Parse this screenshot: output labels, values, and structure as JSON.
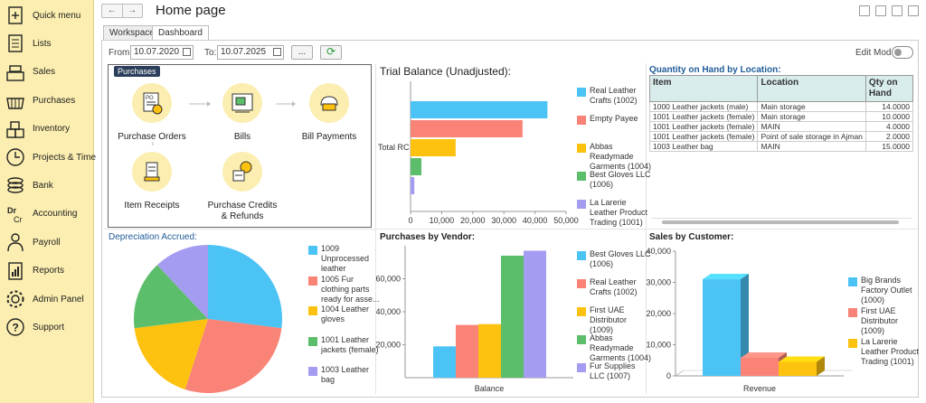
{
  "sidebar": {
    "items": [
      {
        "label": "Quick menu",
        "icon": "plus-doc-icon"
      },
      {
        "label": "Lists",
        "icon": "list-doc-icon"
      },
      {
        "label": "Sales",
        "icon": "cash-register-icon"
      },
      {
        "label": "Purchases",
        "icon": "basket-icon"
      },
      {
        "label": "Inventory",
        "icon": "boxes-icon"
      },
      {
        "label": "Projects & Time",
        "icon": "clock-icon"
      },
      {
        "label": "Bank",
        "icon": "coins-icon"
      },
      {
        "label": "Accounting",
        "icon": "dr-cr-icon"
      },
      {
        "label": "Payroll",
        "icon": "person-icon"
      },
      {
        "label": "Reports",
        "icon": "report-icon"
      },
      {
        "label": "Admin Panel",
        "icon": "gear-icon"
      },
      {
        "label": "Support",
        "icon": "question-icon"
      }
    ]
  },
  "header": {
    "title": "Home page",
    "back": "←",
    "forward": "→"
  },
  "tabs": [
    {
      "label": "Workspace"
    },
    {
      "label": "Dashboard"
    }
  ],
  "filters": {
    "from_label": "From:",
    "from_value": "10.07.2020",
    "to_label": "To:",
    "to_value": "10.07.2025",
    "more_label": "...",
    "refresh_glyph": "⟳"
  },
  "edit_mode_label": "Edit Mode",
  "purchases_flow": {
    "tag": "Purchases",
    "steps": [
      {
        "label": "Purchase Orders"
      },
      {
        "label": "Bills"
      },
      {
        "label": "Bill Payments"
      },
      {
        "label": "Item Receipts"
      },
      {
        "label": "Purchase Credits\n& Refunds"
      }
    ]
  },
  "colors": {
    "blue": "#4cc3f5",
    "red": "#f98377",
    "yellow": "#fdc20f",
    "green": "#5cbe6a",
    "purple": "#a49cf0"
  },
  "trial_balance": {
    "title": "Trial Balance (Unadjusted):",
    "chart_data": {
      "type": "bar",
      "orientation": "horizontal",
      "categories": [
        "Total RC"
      ],
      "series": [
        {
          "name": "Real Leather\nCrafts (1002)",
          "values": [
            44000
          ],
          "color": "#4cc3f5"
        },
        {
          "name": "Empty Payee",
          "values": [
            36000
          ],
          "color": "#f98377"
        },
        {
          "name": "Abbas\nReadymade\nGarments (1004)",
          "values": [
            14500
          ],
          "color": "#fdc20f"
        },
        {
          "name": "Best Gloves LLC\n(1006)",
          "values": [
            3500
          ],
          "color": "#5cbe6a"
        },
        {
          "name": "La Larerie\nLeather Product\nTrading (1001)",
          "values": [
            1200
          ],
          "color": "#a49cf0"
        }
      ],
      "xlim": [
        0,
        50000
      ],
      "xticks": [
        "0",
        "10,000",
        "20,000",
        "30,000",
        "40,000",
        "50,000"
      ]
    }
  },
  "qty_on_hand": {
    "title": "Quantity on Hand by Location:",
    "headers": [
      "Item",
      "Location",
      "Qty on\nHand"
    ],
    "rows": [
      [
        "1000 Leather jackets (male)",
        "Main storage",
        "14.0000"
      ],
      [
        "1001 Leather jackets (female)",
        "Main storage",
        "10.0000"
      ],
      [
        "1001 Leather jackets (female)",
        "MAIN",
        "4.0000"
      ],
      [
        "1001 Leather jackets (female)",
        "Point of sale storage in Ajman",
        "2.0000"
      ],
      [
        "1003 Leather bag",
        "MAIN",
        "15.0000"
      ]
    ]
  },
  "depreciation": {
    "title": "Depreciation Accrued:",
    "chart_data": {
      "type": "pie",
      "slices": [
        {
          "name": "1009\nUnprocessed\nleather",
          "value": 27,
          "color": "#4cc3f5"
        },
        {
          "name": "1005 Fur\nclothing parts\nready for asse...",
          "value": 28,
          "color": "#f98377"
        },
        {
          "name": "1004 Leather\ngloves",
          "value": 18,
          "color": "#fdc20f"
        },
        {
          "name": "1001 Leather\njackets (female)",
          "value": 15,
          "color": "#5cbe6a"
        },
        {
          "name": "1003 Leather\nbag",
          "value": 12,
          "color": "#a49cf0"
        }
      ]
    }
  },
  "purchases_by_vendor": {
    "title": "Purchases by Vendor:",
    "chart_data": {
      "type": "bar",
      "categories": [
        "Balance"
      ],
      "series": [
        {
          "name": "Best Gloves LLC\n(1006)",
          "values": [
            19000
          ],
          "color": "#4cc3f5"
        },
        {
          "name": "Real Leather\nCrafts (1002)",
          "values": [
            32000
          ],
          "color": "#f98377"
        },
        {
          "name": "First UAE\nDistributor\n(1009)",
          "values": [
            32500
          ],
          "color": "#fdc20f"
        },
        {
          "name": "Abbas\nReadymade\nGarments (1004)",
          "values": [
            74000
          ],
          "color": "#5cbe6a"
        },
        {
          "name": "Fur Supplies\nLLC (1007)",
          "values": [
            77000
          ],
          "color": "#a49cf0"
        }
      ],
      "ylim": [
        0,
        80000
      ],
      "yticks": [
        "20,000",
        "40,000",
        "60,000"
      ]
    }
  },
  "sales_by_customer": {
    "title": "Sales by Customer:",
    "chart_data": {
      "type": "bar",
      "categories": [
        "Revenue"
      ],
      "series": [
        {
          "name": "Big Brands\nFactory Outlet\n(1000)",
          "values": [
            31000
          ],
          "color": "#4cc3f5"
        },
        {
          "name": "First UAE\nDistributor\n(1009)",
          "values": [
            5800
          ],
          "color": "#f98377"
        },
        {
          "name": "La Larerie\nLeather Product\nTrading (1001)",
          "values": [
            4500
          ],
          "color": "#fdc20f"
        }
      ],
      "ylim": [
        0,
        40000
      ],
      "yticks": [
        "0",
        "10,000",
        "20,000",
        "30,000",
        "40,000"
      ]
    }
  }
}
